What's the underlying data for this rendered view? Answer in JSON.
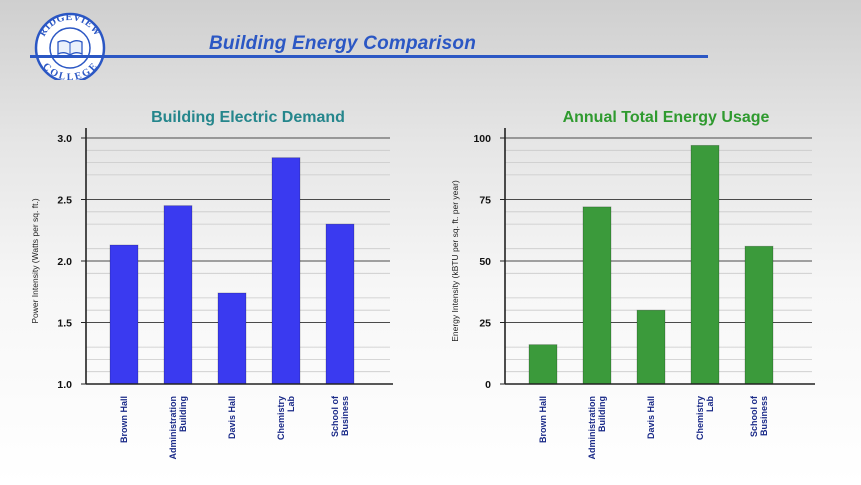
{
  "header": {
    "title": "Building Energy Comparison",
    "logo": {
      "top_text": "RIDGEVIEW",
      "bottom_text": "COLLEGE",
      "icon": "open-book-icon"
    }
  },
  "colors": {
    "header_blue": "#2b57c4",
    "demand_bar": "#3a3af0",
    "demand_title": "#25868c",
    "usage_bar": "#3b9a3b",
    "usage_title": "#2f9a2f"
  },
  "chart_data": [
    {
      "type": "bar",
      "title": "Building Electric Demand",
      "ylabel": "Power Intensity    (Watts per sq. ft.)",
      "categories": [
        [
          "Brown Hall"
        ],
        [
          "Administration",
          "Building"
        ],
        [
          "Davis Hall"
        ],
        [
          "Chemistry",
          "Lab"
        ],
        [
          "School of",
          "Business"
        ]
      ],
      "values": [
        2.13,
        2.45,
        1.74,
        2.84,
        2.3
      ],
      "ylim": [
        1.0,
        3.0
      ],
      "yticks": [
        "1.0",
        "1.5",
        "2.0",
        "2.5",
        "3.0"
      ],
      "grid": true
    },
    {
      "type": "bar",
      "title": "Annual Total Energy Usage",
      "ylabel": "Energy Intensity    (kBTU per sq. ft. per year)",
      "categories": [
        [
          "Brown Hall"
        ],
        [
          "Administration",
          "Building"
        ],
        [
          "Davis Hall"
        ],
        [
          "Chemistry",
          "Lab"
        ],
        [
          "School of",
          "Business"
        ]
      ],
      "values": [
        16,
        72,
        30,
        97,
        56
      ],
      "ylim": [
        0,
        100
      ],
      "yticks": [
        "0",
        "25",
        "50",
        "75",
        "100"
      ],
      "grid": true
    }
  ]
}
